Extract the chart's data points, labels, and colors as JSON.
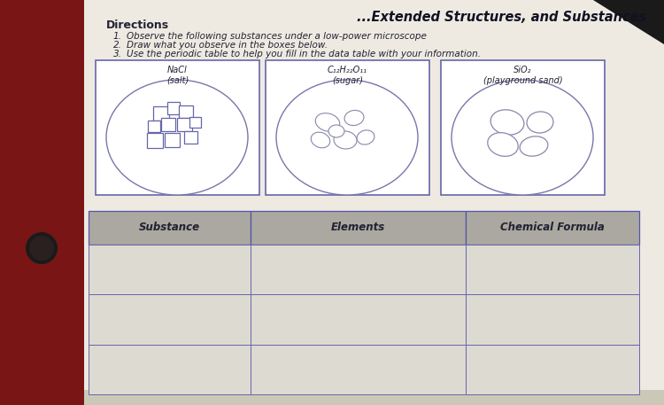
{
  "title": "...Extended Structures, and Substances",
  "directions_title": "Directions",
  "directions": [
    "Observe the following substances under a low-power microscope",
    "Draw what you observe in the boxes below.",
    "Use the periodic table to help you fill in the data table with your information."
  ],
  "substances": [
    {
      "label": "NaCl\n(salt)"
    },
    {
      "label": "C₁₂H₂₂O₁₁\n(sugar)"
    },
    {
      "label": "SiO₂\n(playground sand)"
    }
  ],
  "table_headers": [
    "Substance",
    "Elements",
    "Chemical Formula"
  ],
  "table_rows": 3,
  "bg_color_top": "#c8a090",
  "bg_color": "#c0b8a8",
  "paper_color": "#eeeae2",
  "header_fill": "#b0aaa0",
  "cell_fill": "#e0ddd6",
  "border_color": "#5555aa",
  "text_color": "#222233",
  "dark_red_bg": "#7a1515",
  "title_color": "#111122"
}
